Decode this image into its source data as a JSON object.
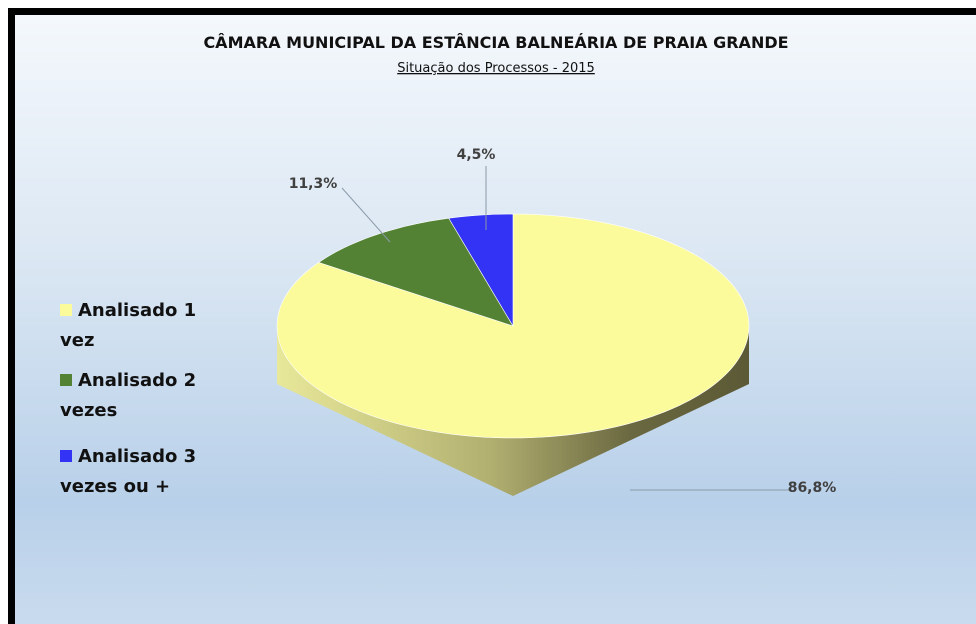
{
  "chart_data": {
    "type": "pie",
    "title": "CÂMARA MUNICIPAL DA ESTÂNCIA BALNEÁRIA DE PRAIA GRANDE",
    "subtitle": "Situação dos Processos - 2015",
    "categories": [
      "Analisado 1 vez",
      "Analisado 2 vezes",
      "Analisado 3 vezes ou +"
    ],
    "values": [
      86.8,
      11.3,
      4.5
    ],
    "value_labels": [
      "86,8%",
      "11,3%",
      "4,5%"
    ],
    "colors": [
      "#fbfb9c",
      "#548235",
      "#3333f5"
    ],
    "legend": "left"
  }
}
